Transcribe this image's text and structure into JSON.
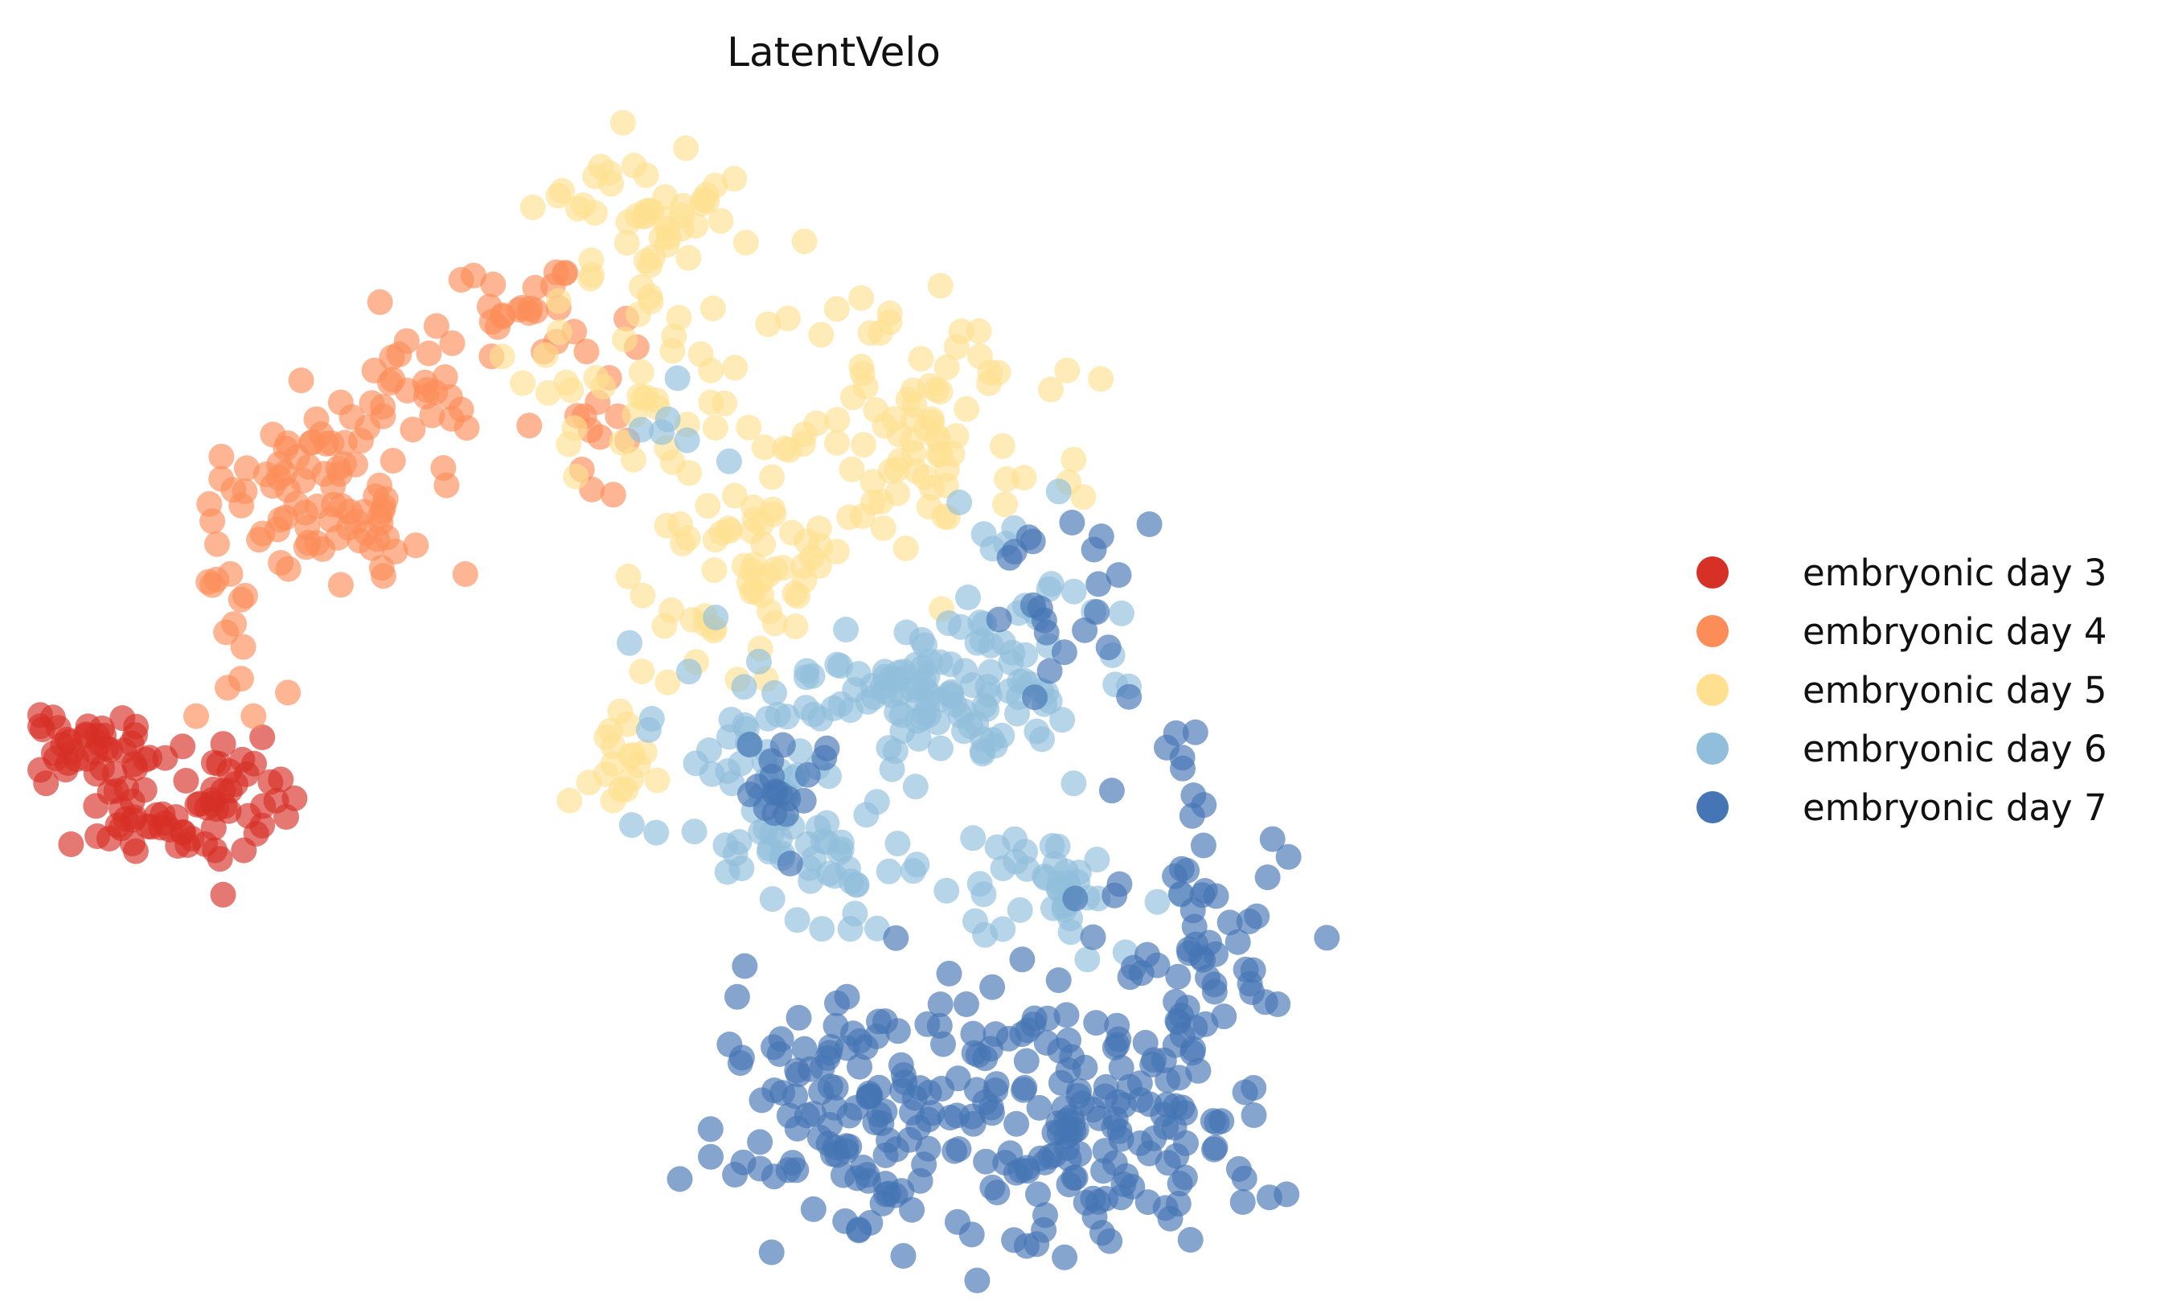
{
  "chart_data": {
    "type": "scatter",
    "title": "LatentVelo",
    "xlabel": "",
    "ylabel": "",
    "axes_visible": false,
    "grid": false,
    "legend_position": "right",
    "xlim": [
      0,
      100
    ],
    "ylim": [
      0,
      100
    ],
    "point_alpha": 0.65,
    "series": [
      {
        "name": "embryonic day 3",
        "color": "#d73027",
        "clusters": [
          {
            "cx": 3.0,
            "cy": 44.0,
            "sx": 2.0,
            "sy": 2.2,
            "n": 45
          },
          {
            "cx": 9.0,
            "cy": 38.5,
            "sx": 3.0,
            "sy": 1.6,
            "n": 40
          },
          {
            "cx": 12.5,
            "cy": 42.5,
            "sx": 1.6,
            "sy": 1.8,
            "n": 22
          }
        ]
      },
      {
        "name": "embryonic day 4",
        "color": "#fc8d59",
        "clusters": [
          {
            "cx": 12.0,
            "cy": 55.0,
            "sx": 1.3,
            "sy": 4.0,
            "n": 18
          },
          {
            "cx": 15.0,
            "cy": 65.0,
            "sx": 2.4,
            "sy": 2.4,
            "n": 28
          },
          {
            "cx": 19.0,
            "cy": 70.5,
            "sx": 2.2,
            "sy": 2.0,
            "n": 24
          },
          {
            "cx": 21.0,
            "cy": 63.5,
            "sx": 2.4,
            "sy": 1.8,
            "n": 26
          },
          {
            "cx": 24.5,
            "cy": 74.0,
            "sx": 2.2,
            "sy": 3.2,
            "n": 24
          },
          {
            "cx": 30.5,
            "cy": 82.0,
            "sx": 2.5,
            "sy": 2.2,
            "n": 26
          },
          {
            "cx": 35.0,
            "cy": 74.0,
            "sx": 1.4,
            "sy": 5.0,
            "n": 14
          }
        ]
      },
      {
        "name": "embryonic day 5",
        "color": "#fee090",
        "clusters": [
          {
            "cx": 37.5,
            "cy": 90.0,
            "sx": 3.2,
            "sy": 2.6,
            "n": 45
          },
          {
            "cx": 37.0,
            "cy": 75.0,
            "sx": 3.0,
            "sy": 4.5,
            "n": 40
          },
          {
            "cx": 45.0,
            "cy": 59.0,
            "sx": 3.8,
            "sy": 4.5,
            "n": 65
          },
          {
            "cx": 55.0,
            "cy": 72.0,
            "sx": 4.5,
            "sy": 4.8,
            "n": 85
          },
          {
            "cx": 36.5,
            "cy": 44.0,
            "sx": 1.2,
            "sy": 2.2,
            "n": 18
          }
        ]
      },
      {
        "name": "embryonic day 6",
        "color": "#91bfdb",
        "clusters": [
          {
            "cx": 44.0,
            "cy": 44.0,
            "sx": 3.0,
            "sy": 3.0,
            "n": 40
          },
          {
            "cx": 55.5,
            "cy": 49.5,
            "sx": 5.0,
            "sy": 3.0,
            "n": 90
          },
          {
            "cx": 50.0,
            "cy": 36.0,
            "sx": 4.0,
            "sy": 3.0,
            "n": 45
          },
          {
            "cx": 63.5,
            "cy": 33.5,
            "sx": 3.0,
            "sy": 3.0,
            "n": 40
          },
          {
            "cx": 61.0,
            "cy": 57.0,
            "sx": 3.0,
            "sy": 6.0,
            "n": 35
          },
          {
            "cx": 40.0,
            "cy": 72.0,
            "sx": 2.5,
            "sy": 3.0,
            "n": 6
          }
        ]
      },
      {
        "name": "embryonic day 7",
        "color": "#4575b4",
        "clusters": [
          {
            "cx": 51.5,
            "cy": 15.0,
            "sx": 5.0,
            "sy": 5.5,
            "n": 120
          },
          {
            "cx": 63.0,
            "cy": 13.0,
            "sx": 4.5,
            "sy": 5.5,
            "n": 110
          },
          {
            "cx": 71.0,
            "cy": 27.0,
            "sx": 3.5,
            "sy": 8.0,
            "n": 80
          },
          {
            "cx": 71.0,
            "cy": 12.0,
            "sx": 3.0,
            "sy": 3.0,
            "n": 30
          },
          {
            "cx": 64.0,
            "cy": 57.0,
            "sx": 2.0,
            "sy": 5.0,
            "n": 22
          },
          {
            "cx": 47.0,
            "cy": 40.5,
            "sx": 2.0,
            "sy": 2.5,
            "n": 18
          }
        ]
      }
    ]
  }
}
